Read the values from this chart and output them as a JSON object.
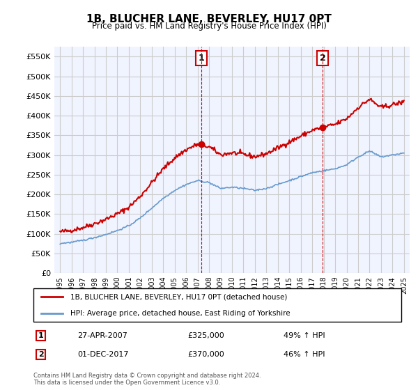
{
  "title": "1B, BLUCHER LANE, BEVERLEY, HU17 0PT",
  "subtitle": "Price paid vs. HM Land Registry's House Price Index (HPI)",
  "legend_line1": "1B, BLUCHER LANE, BEVERLEY, HU17 0PT (detached house)",
  "legend_line2": "HPI: Average price, detached house, East Riding of Yorkshire",
  "sale1_label": "1",
  "sale1_date": "27-APR-2007",
  "sale1_price": "£325,000",
  "sale1_hpi": "49% ↑ HPI",
  "sale1_year": 2007.33,
  "sale1_value": 325000,
  "sale2_label": "2",
  "sale2_date": "01-DEC-2017",
  "sale2_price": "£370,000",
  "sale2_hpi": "46% ↑ HPI",
  "sale2_year": 2017.92,
  "sale2_value": 370000,
  "red_color": "#cc0000",
  "blue_color": "#6699cc",
  "marker_color": "#cc0000",
  "grid_color": "#cccccc",
  "background_color": "#ffffff",
  "ylim": [
    0,
    575000
  ],
  "xlim_start": 1995,
  "xlim_end": 2025.5,
  "footer": "Contains HM Land Registry data © Crown copyright and database right 2024.\nThis data is licensed under the Open Government Licence v3.0."
}
